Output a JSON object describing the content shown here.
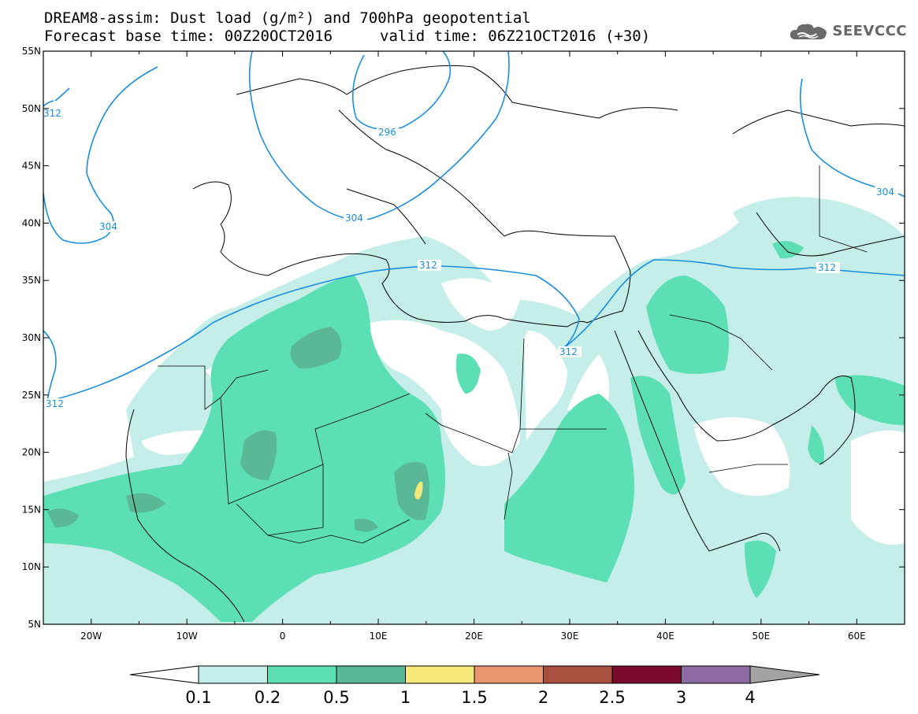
{
  "header": {
    "title_line1": "DREAM8-assim: Dust load (g/m²) and 700hPa geopotential",
    "title_line2_left": "Forecast base time: 00Z20OCT2016",
    "title_line2_right": "valid time: 06Z21OCT2016 (+30)"
  },
  "logo": {
    "text": "SEEVCCC",
    "icon": "cloud-icon"
  },
  "map": {
    "lat_labels": [
      "55N",
      "50N",
      "45N",
      "40N",
      "35N",
      "30N",
      "25N",
      "20N",
      "15N",
      "10N",
      "5N"
    ],
    "lon_labels": [
      "20W",
      "10W",
      "0",
      "10E",
      "20E",
      "30E",
      "40E",
      "50E",
      "60E"
    ],
    "lat_range": [
      5,
      55
    ],
    "lon_range": [
      -25,
      65
    ],
    "contour_color": "#1a8fe0",
    "contour_labels": [
      "296",
      "304",
      "304",
      "304",
      "312",
      "312",
      "312",
      "312",
      "312"
    ]
  },
  "colorbar": {
    "labels": [
      "0.1",
      "0.2",
      "0.5",
      "1",
      "1.5",
      "2",
      "2.5",
      "3",
      "4"
    ],
    "colors": [
      "#ffffff",
      "#c4eee7",
      "#5ddfb5",
      "#5ab896",
      "#f6e97a",
      "#e9956d",
      "#a84f3e",
      "#7a0b2c",
      "#8d6ba2",
      "#a3a3a3"
    ]
  },
  "dust_colors": {
    "light": "#c4eee7",
    "mid": "#5ddfb5",
    "dark": "#5ab896",
    "yellow": "#f6e97a"
  }
}
